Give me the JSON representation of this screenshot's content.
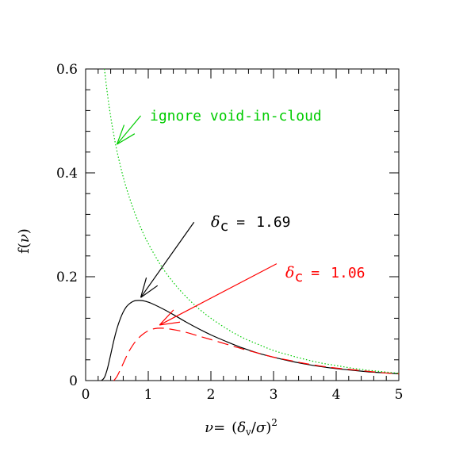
{
  "chart_data": {
    "type": "line",
    "title": "",
    "xlabel": {
      "prefix": "ν=",
      "open": "(",
      "delta": "δ",
      "delta_sub": "v",
      "slash": "/",
      "sigma": "σ",
      "close": ")",
      "power": "2"
    },
    "ylabel": {
      "func": "f(",
      "nu": "ν",
      "close": ")"
    },
    "xlim": [
      0,
      5
    ],
    "ylim": [
      0,
      0.6
    ],
    "x_ticks": [
      0,
      1,
      2,
      3,
      4,
      5
    ],
    "x_tick_labels": [
      "0",
      "1",
      "2",
      "3",
      "4",
      "5"
    ],
    "y_ticks": [
      0,
      0.2,
      0.4,
      0.6
    ],
    "y_tick_labels": [
      "0",
      "0.2",
      "0.4",
      "0.6"
    ],
    "grid": false,
    "series": [
      {
        "style": "solid",
        "color": "#000000",
        "x": [
          0.25,
          0.3,
          0.35,
          0.4,
          0.45,
          0.5,
          0.55,
          0.6,
          0.65,
          0.7,
          0.75,
          0.8,
          0.9,
          1.0,
          1.1,
          1.25,
          1.4,
          1.6,
          1.8,
          2.0,
          2.25,
          2.5,
          2.75,
          3.0,
          3.25,
          3.5,
          3.75,
          4.0,
          4.25,
          4.5,
          4.75,
          5.0
        ],
        "y": [
          0.0,
          0.006,
          0.024,
          0.05,
          0.077,
          0.1,
          0.118,
          0.132,
          0.142,
          0.148,
          0.152,
          0.154,
          0.154,
          0.151,
          0.146,
          0.137,
          0.127,
          0.113,
          0.1,
          0.088,
          0.075,
          0.063,
          0.053,
          0.045,
          0.038,
          0.032,
          0.027,
          0.023,
          0.02,
          0.017,
          0.015,
          0.013
        ]
      },
      {
        "style": "dashed",
        "color": "#ff0000",
        "x": [
          0.45,
          0.5,
          0.55,
          0.6,
          0.65,
          0.7,
          0.8,
          0.9,
          1.0,
          1.1,
          1.2,
          1.3,
          1.45,
          1.6,
          1.8,
          2.0,
          2.25,
          2.5,
          2.75,
          3.0,
          3.25,
          3.5,
          3.75,
          4.0,
          4.25,
          4.5,
          4.75,
          5.0
        ],
        "y": [
          0.0,
          0.008,
          0.02,
          0.033,
          0.046,
          0.058,
          0.076,
          0.088,
          0.096,
          0.1,
          0.101,
          0.1,
          0.097,
          0.093,
          0.086,
          0.079,
          0.07,
          0.061,
          0.053,
          0.045,
          0.039,
          0.033,
          0.028,
          0.024,
          0.021,
          0.018,
          0.015,
          0.013
        ]
      },
      {
        "style": "dotted",
        "color": "#00cc00",
        "x": [
          0.3,
          0.35,
          0.4,
          0.45,
          0.5,
          0.6,
          0.7,
          0.8,
          0.9,
          1.0,
          1.2,
          1.4,
          1.6,
          1.8,
          2.0,
          2.25,
          2.5,
          2.75,
          3.0,
          3.25,
          3.5,
          3.75,
          4.0,
          4.25,
          4.5,
          4.75,
          5.0
        ],
        "y": [
          0.6,
          0.55,
          0.508,
          0.473,
          0.442,
          0.392,
          0.352,
          0.318,
          0.289,
          0.264,
          0.222,
          0.189,
          0.162,
          0.139,
          0.12,
          0.1,
          0.083,
          0.07,
          0.058,
          0.049,
          0.041,
          0.034,
          0.029,
          0.024,
          0.02,
          0.017,
          0.014
        ]
      }
    ],
    "annotations": [
      {
        "color": "#00cc00",
        "text": "ignore void-in-cloud",
        "arrow_from": [
          0.88,
          0.51
        ],
        "arrow_to": [
          0.5,
          0.455
        ]
      },
      {
        "color": "#000000",
        "label_delta": "δ",
        "label_sub": "c",
        "label_eq": "=",
        "label_value": "1.69",
        "arrow_from": [
          1.73,
          0.305
        ],
        "arrow_to": [
          0.88,
          0.16
        ]
      },
      {
        "color": "#ff0000",
        "label_delta": "δ",
        "label_sub": "c",
        "label_eq": "=",
        "label_value": "1.06",
        "arrow_from": [
          3.05,
          0.225
        ],
        "arrow_to": [
          1.18,
          0.107
        ]
      }
    ]
  }
}
